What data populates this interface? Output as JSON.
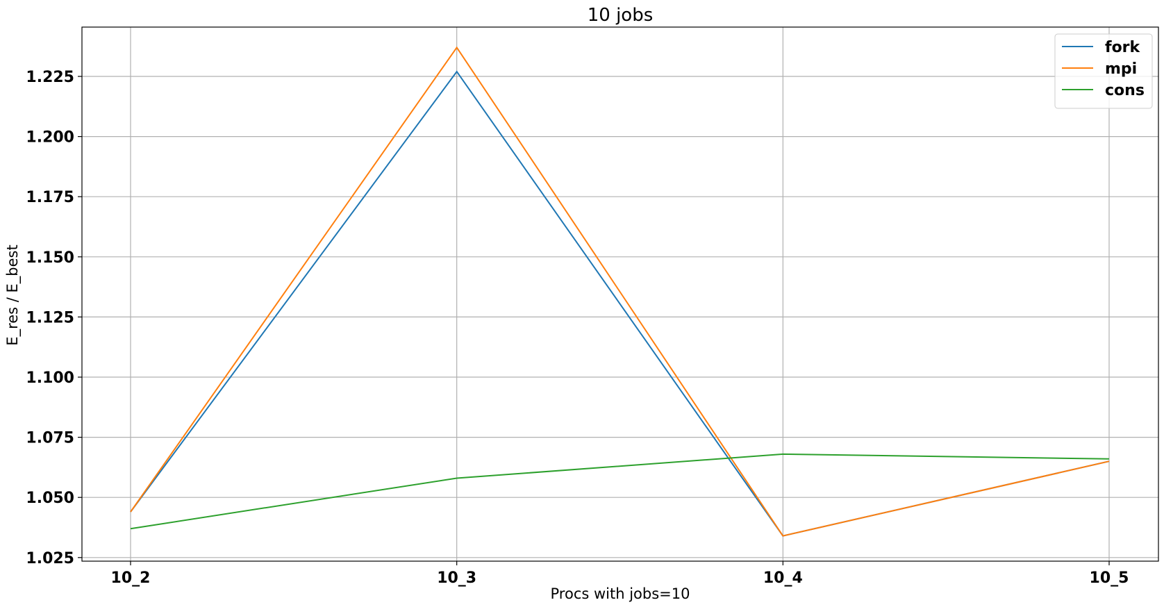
{
  "chart_data": {
    "type": "line",
    "title": "10 jobs",
    "xlabel": "Procs with jobs=10",
    "ylabel": "E_res / E_best",
    "categories": [
      "10_2",
      "10_3",
      "10_4",
      "10_5"
    ],
    "ylim": [
      1.0235,
      1.2455
    ],
    "yticks": [
      "1.025",
      "1.050",
      "1.075",
      "1.100",
      "1.125",
      "1.150",
      "1.175",
      "1.200",
      "1.225"
    ],
    "grid": true,
    "legend_position": "top-right",
    "series": [
      {
        "name": "fork",
        "color": "#1f77b4",
        "values": [
          1.044,
          1.227,
          1.034,
          1.065
        ]
      },
      {
        "name": "mpi",
        "color": "#ff7f0e",
        "values": [
          1.044,
          1.237,
          1.034,
          1.065
        ]
      },
      {
        "name": "cons",
        "color": "#2ca02c",
        "values": [
          1.037,
          1.058,
          1.068,
          1.066
        ]
      }
    ]
  }
}
